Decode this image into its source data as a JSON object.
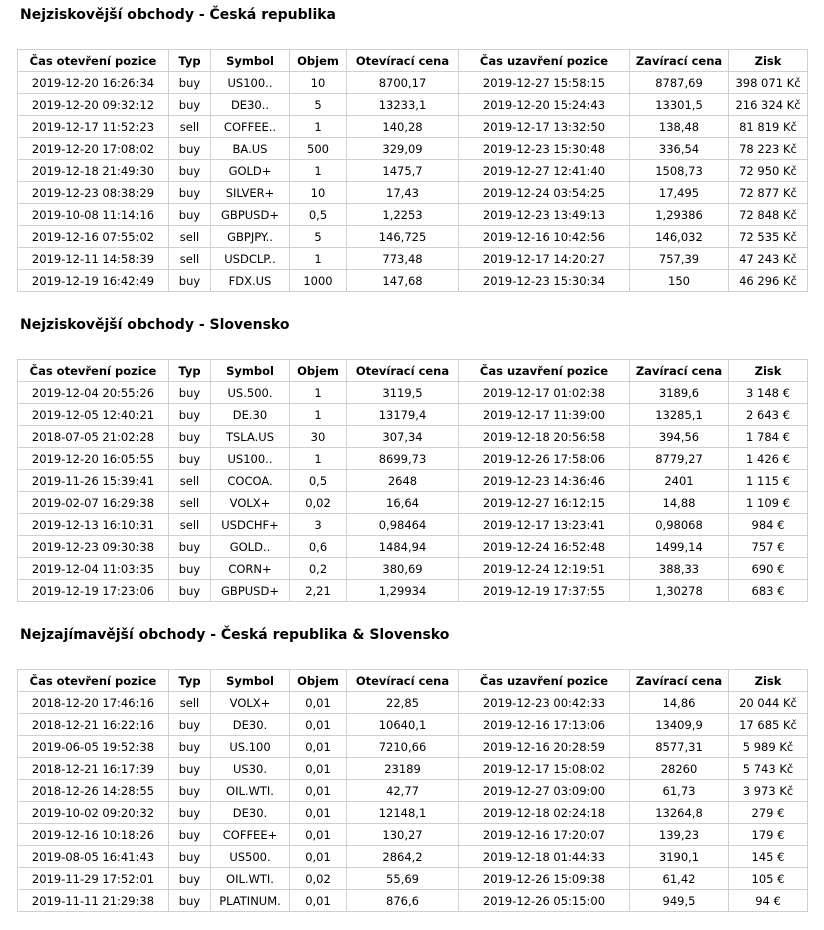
{
  "sections": [
    {
      "title": "Nejziskovější obchody - Česká republika",
      "header": [
        "Čas otevření pozice",
        "Typ",
        "Symbol",
        "Objem",
        "Otevírací cena",
        "Čas uzavření pozice",
        "Zavírací cena",
        "Zisk"
      ],
      "rows": [
        [
          "2019-12-20 16:26:34",
          "buy",
          "US100..",
          "10",
          "8700,17",
          "2019-12-27 15:58:15",
          "8787,69",
          "398 071 Kč"
        ],
        [
          "2019-12-20 09:32:12",
          "buy",
          "DE30..",
          "5",
          "13233,1",
          "2019-12-20 15:24:43",
          "13301,5",
          "216 324 Kč"
        ],
        [
          "2019-12-17 11:52:23",
          "sell",
          "COFFEE..",
          "1",
          "140,28",
          "2019-12-17 13:32:50",
          "138,48",
          "81 819 Kč"
        ],
        [
          "2019-12-20 17:08:02",
          "buy",
          "BA.US",
          "500",
          "329,09",
          "2019-12-23 15:30:48",
          "336,54",
          "78 223 Kč"
        ],
        [
          "2019-12-18 21:49:30",
          "buy",
          "GOLD+",
          "1",
          "1475,7",
          "2019-12-27 12:41:40",
          "1508,73",
          "72 950 Kč"
        ],
        [
          "2019-12-23 08:38:29",
          "buy",
          "SILVER+",
          "10",
          "17,43",
          "2019-12-24 03:54:25",
          "17,495",
          "72 877 Kč"
        ],
        [
          "2019-10-08 11:14:16",
          "buy",
          "GBPUSD+",
          "0,5",
          "1,2253",
          "2019-12-23 13:49:13",
          "1,29386",
          "72 848 Kč"
        ],
        [
          "2019-12-16 07:55:02",
          "sell",
          "GBPJPY..",
          "5",
          "146,725",
          "2019-12-16 10:42:56",
          "146,032",
          "72 535 Kč"
        ],
        [
          "2019-12-11 14:58:39",
          "sell",
          "USDCLP..",
          "1",
          "773,48",
          "2019-12-17 14:20:27",
          "757,39",
          "47 243 Kč"
        ],
        [
          "2019-12-19 16:42:49",
          "buy",
          "FDX.US",
          "1000",
          "147,68",
          "2019-12-23 15:30:34",
          "150",
          "46 296 Kč"
        ]
      ]
    },
    {
      "title": "Nejziskovější obchody - Slovensko",
      "header": [
        "Čas otevření pozice",
        "Typ",
        "Symbol",
        "Objem",
        "Otevírací cena",
        "Čas uzavření pozice",
        "Zavírací cena",
        "Zisk"
      ],
      "rows": [
        [
          "2019-12-04 20:55:26",
          "buy",
          "US.500.",
          "1",
          "3119,5",
          "2019-12-17 01:02:38",
          "3189,6",
          "3 148 €"
        ],
        [
          "2019-12-05 12:40:21",
          "buy",
          "DE.30",
          "1",
          "13179,4",
          "2019-12-17 11:39:00",
          "13285,1",
          "2 643 €"
        ],
        [
          "2018-07-05 21:02:28",
          "buy",
          "TSLA.US",
          "30",
          "307,34",
          "2019-12-18 20:56:58",
          "394,56",
          "1 784 €"
        ],
        [
          "2019-12-20 16:05:55",
          "buy",
          "US100..",
          "1",
          "8699,73",
          "2019-12-26 17:58:06",
          "8779,27",
          "1 426 €"
        ],
        [
          "2019-11-26 15:39:41",
          "sell",
          "COCOA.",
          "0,5",
          "2648",
          "2019-12-23 14:36:46",
          "2401",
          "1 115 €"
        ],
        [
          "2019-02-07 16:29:38",
          "sell",
          "VOLX+",
          "0,02",
          "16,64",
          "2019-12-27 16:12:15",
          "14,88",
          "1 109 €"
        ],
        [
          "2019-12-13 16:10:31",
          "sell",
          "USDCHF+",
          "3",
          "0,98464",
          "2019-12-17 13:23:41",
          "0,98068",
          "984 €"
        ],
        [
          "2019-12-23 09:30:38",
          "buy",
          "GOLD..",
          "0,6",
          "1484,94",
          "2019-12-24 16:52:48",
          "1499,14",
          "757 €"
        ],
        [
          "2019-12-04 11:03:35",
          "buy",
          "CORN+",
          "0,2",
          "380,69",
          "2019-12-24 12:19:51",
          "388,33",
          "690 €"
        ],
        [
          "2019-12-19 17:23:06",
          "buy",
          "GBPUSD+",
          "2,21",
          "1,29934",
          "2019-12-19 17:37:55",
          "1,30278",
          "683 €"
        ]
      ]
    },
    {
      "title": "Nejzajímavější obchody - Česká republika & Slovensko",
      "header": [
        "Čas otevření pozice",
        "Typ",
        "Symbol",
        "Objem",
        "Otevírací cena",
        "Čas uzavření pozice",
        "Zavírací cena",
        "Zisk"
      ],
      "rows": [
        [
          "2018-12-20 17:46:16",
          "sell",
          "VOLX+",
          "0,01",
          "22,85",
          "2019-12-23 00:42:33",
          "14,86",
          "20 044 Kč"
        ],
        [
          "2018-12-21 16:22:16",
          "buy",
          "DE30.",
          "0,01",
          "10640,1",
          "2019-12-16 17:13:06",
          "13409,9",
          "17 685 Kč"
        ],
        [
          "2019-06-05 19:52:38",
          "buy",
          "US.100",
          "0,01",
          "7210,66",
          "2019-12-16 20:28:59",
          "8577,31",
          "5 989 Kč"
        ],
        [
          "2018-12-21 16:17:39",
          "buy",
          "US30.",
          "0,01",
          "23189",
          "2019-12-17 15:08:02",
          "28260",
          "5 743 Kč"
        ],
        [
          "2018-12-26 14:28:55",
          "buy",
          "OIL.WTI.",
          "0,01",
          "42,77",
          "2019-12-27 03:09:00",
          "61,73",
          "3 973 Kč"
        ],
        [
          "2019-10-02 09:20:32",
          "buy",
          "DE30.",
          "0,01",
          "12148,1",
          "2019-12-18 02:24:18",
          "13264,8",
          "279 €"
        ],
        [
          "2019-12-16 10:18:26",
          "buy",
          "COFFEE+",
          "0,01",
          "130,27",
          "2019-12-16 17:20:07",
          "139,23",
          "179 €"
        ],
        [
          "2019-08-05 16:41:43",
          "buy",
          "US500.",
          "0,01",
          "2864,2",
          "2019-12-18 01:44:33",
          "3190,1",
          "145 €"
        ],
        [
          "2019-11-29 17:52:01",
          "buy",
          "OIL.WTI.",
          "0,02",
          "55,69",
          "2019-12-26 15:09:38",
          "61,42",
          "105 €"
        ],
        [
          "2019-11-11 21:29:38",
          "buy",
          "PLATINUM.",
          "0,01",
          "876,6",
          "2019-12-26 05:15:00",
          "949,5",
          "94 €"
        ]
      ]
    }
  ]
}
